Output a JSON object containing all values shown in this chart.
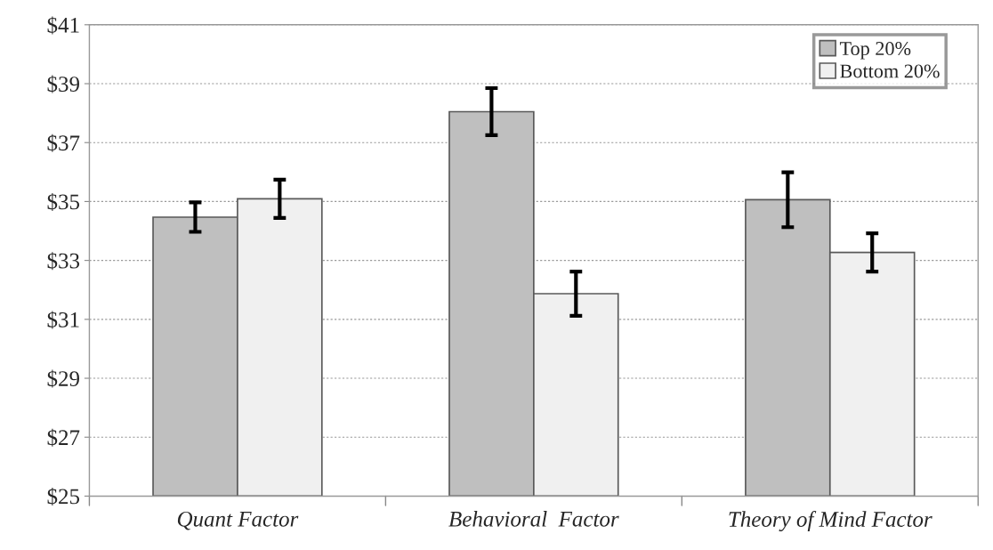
{
  "chart_data": {
    "type": "bar",
    "categories": [
      "Quant Factor",
      "Behavioral  Factor",
      "Theory of Mind Factor"
    ],
    "series": [
      {
        "name": "Top 20%",
        "color": "#bfbfbf",
        "values": [
          34.47,
          38.05,
          35.06
        ],
        "errors": [
          0.5,
          0.8,
          0.93
        ]
      },
      {
        "name": "Bottom 20%",
        "color": "#f0f0f0",
        "values": [
          35.09,
          31.87,
          33.27
        ],
        "errors": [
          0.65,
          0.75,
          0.65
        ]
      }
    ],
    "ylim": [
      25,
      41
    ],
    "yticks": [
      {
        "value": 25,
        "label": "$25"
      },
      {
        "value": 27,
        "label": "$27"
      },
      {
        "value": 29,
        "label": "$29"
      },
      {
        "value": 31,
        "label": "$31"
      },
      {
        "value": 33,
        "label": "$33"
      },
      {
        "value": 35,
        "label": "$35"
      },
      {
        "value": 37,
        "label": "$37"
      },
      {
        "value": 39,
        "label": "$39"
      },
      {
        "value": 41,
        "label": "$41"
      }
    ],
    "grid": "y",
    "legend": "top right"
  }
}
